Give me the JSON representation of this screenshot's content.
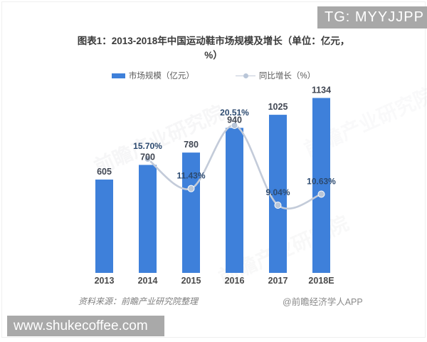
{
  "overlays": {
    "tg_badge": "TG: MYYJJPP",
    "url_badge": "www.shukecoffee.com"
  },
  "chart_data": {
    "type": "bar",
    "title": "图表1：2013-2018年中国运动鞋市场规模及增长（单位：亿元，%）",
    "categories": [
      "2013",
      "2014",
      "2015",
      "2016",
      "2017",
      "2018E"
    ],
    "series": [
      {
        "name": "市场规模（亿元）",
        "type": "bar",
        "values": [
          605,
          700,
          780,
          940,
          1025,
          1134
        ],
        "value_labels": [
          "605",
          "700",
          "780",
          "940",
          "1025",
          "1134"
        ],
        "color": "#3e80da"
      },
      {
        "name": "同比增长（%）",
        "type": "line",
        "values": [
          null,
          15.7,
          11.43,
          20.51,
          9.04,
          10.63
        ],
        "value_labels": [
          "",
          "15.70%",
          "11.43%",
          "20.51%",
          "9.04%",
          "10.63%"
        ],
        "color": "#c3cbd9",
        "marker_color": "#b9c6d8"
      }
    ],
    "legend_position": "top",
    "grid": false,
    "ylim_bar": [
      0,
      1215
    ],
    "label_colors": {
      "bar_values": "#414753",
      "line_values": "#2c4a70",
      "x_axis": "#4a4a4a"
    }
  },
  "watermark": {
    "text": "前瞻产业研究院"
  },
  "footer": {
    "source": "资料来源：前瞻产业研究院整理",
    "credit": "@前瞻经济学人APP"
  }
}
